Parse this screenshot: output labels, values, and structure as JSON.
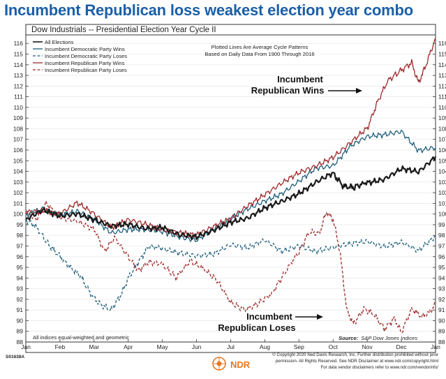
{
  "headline": "Incumbent Republican loss weakest election year combo",
  "chart_data": {
    "type": "line",
    "title": "Dow Industrials -- Presidential Election Year Cycle II",
    "note_lines": [
      "Plotted Lines Are Average Cycle Patterns",
      "Based on Daily Data From 1900 Through 2016"
    ],
    "x_ticks": [
      "Jan",
      "Feb",
      "Mar",
      "Apr",
      "May",
      "Jun",
      "Jul",
      "Aug",
      "Sep",
      "Oct",
      "Nov",
      "Dec",
      "Jan"
    ],
    "y_ticks": [
      88,
      89,
      90,
      91,
      92,
      93,
      94,
      95,
      96,
      97,
      98,
      99,
      100,
      101,
      102,
      103,
      104,
      105,
      106,
      107,
      108,
      109,
      110,
      111,
      112,
      113,
      114,
      115,
      116
    ],
    "ylim": [
      88,
      116.8
    ],
    "xlim": [
      0,
      12
    ],
    "series": [
      {
        "name": "All Elections",
        "color": "#1a1a1a",
        "dash": "",
        "width": 2.2,
        "points": [
          [
            0,
            99.5
          ],
          [
            0.5,
            100.3
          ],
          [
            1,
            99.8
          ],
          [
            1.5,
            100.1
          ],
          [
            2,
            99.5
          ],
          [
            2.5,
            98.8
          ],
          [
            3,
            99.0
          ],
          [
            3.5,
            98.7
          ],
          [
            4,
            98.8
          ],
          [
            4.5,
            98.0
          ],
          [
            5,
            97.8
          ],
          [
            5.5,
            98.5
          ],
          [
            6,
            99.3
          ],
          [
            6.5,
            99.6
          ],
          [
            7,
            100.5
          ],
          [
            7.5,
            101.2
          ],
          [
            8,
            102.0
          ],
          [
            8.5,
            103.0
          ],
          [
            9,
            103.8
          ],
          [
            9.3,
            102.6
          ],
          [
            9.6,
            102.5
          ],
          [
            10,
            103.0
          ],
          [
            10.5,
            103.3
          ],
          [
            11,
            104.2
          ],
          [
            11.5,
            103.9
          ],
          [
            12,
            105.4
          ]
        ]
      },
      {
        "name": "Incumbent Democratic Party Wins",
        "color": "#1e5f7a",
        "dash": "",
        "width": 1.3,
        "points": [
          [
            0,
            99.9
          ],
          [
            0.5,
            100.6
          ],
          [
            1,
            99.9
          ],
          [
            1.5,
            100.2
          ],
          [
            2,
            99.5
          ],
          [
            2.5,
            98.3
          ],
          [
            3,
            98.6
          ],
          [
            3.5,
            98.5
          ],
          [
            4,
            98.3
          ],
          [
            4.5,
            97.9
          ],
          [
            5,
            97.6
          ],
          [
            5.5,
            98.6
          ],
          [
            6,
            99.5
          ],
          [
            6.5,
            100.5
          ],
          [
            7,
            101.3
          ],
          [
            7.5,
            101.9
          ],
          [
            8,
            103.0
          ],
          [
            8.5,
            104.3
          ],
          [
            9,
            104.6
          ],
          [
            9.5,
            106.4
          ],
          [
            10,
            107.2
          ],
          [
            10.5,
            107.4
          ],
          [
            11,
            107.8
          ],
          [
            11.5,
            106.0
          ],
          [
            12,
            106.2
          ]
        ]
      },
      {
        "name": "Incumbent Democratic Party Loses",
        "color": "#1e5f7a",
        "dash": "4,2.5",
        "width": 1.3,
        "points": [
          [
            0,
            99.5
          ],
          [
            0.3,
            98.8
          ],
          [
            0.7,
            97.0
          ],
          [
            1,
            96.0
          ],
          [
            1.3,
            95.0
          ],
          [
            1.6,
            94.2
          ],
          [
            1.9,
            92.5
          ],
          [
            2.2,
            91.5
          ],
          [
            2.5,
            91.0
          ],
          [
            2.8,
            92.5
          ],
          [
            3,
            94.0
          ],
          [
            3.3,
            95.5
          ],
          [
            3.6,
            97.0
          ],
          [
            4,
            96.8
          ],
          [
            4.5,
            96.3
          ],
          [
            5,
            96.0
          ],
          [
            5.5,
            96.3
          ],
          [
            6,
            97.2
          ],
          [
            6.5,
            96.8
          ],
          [
            7,
            97.5
          ],
          [
            7.5,
            96.5
          ],
          [
            8,
            97.1
          ],
          [
            8.5,
            96.5
          ],
          [
            9,
            96.8
          ],
          [
            9.5,
            97.2
          ],
          [
            10,
            97.5
          ],
          [
            10.5,
            97.0
          ],
          [
            11,
            97.3
          ],
          [
            11.5,
            96.5
          ],
          [
            12,
            98.0
          ]
        ]
      },
      {
        "name": "Incumbent Republican Party Wins",
        "color": "#9e2a2b",
        "dash": "",
        "width": 1.3,
        "points": [
          [
            0,
            100.2
          ],
          [
            0.5,
            100.4
          ],
          [
            1,
            100.0
          ],
          [
            1.5,
            101.0
          ],
          [
            2,
            100.0
          ],
          [
            2.5,
            98.8
          ],
          [
            3,
            99.5
          ],
          [
            3.5,
            99.0
          ],
          [
            4,
            98.5
          ],
          [
            4.5,
            98.3
          ],
          [
            5,
            98.1
          ],
          [
            5.5,
            98.8
          ],
          [
            6,
            99.5
          ],
          [
            6.5,
            100.8
          ],
          [
            7,
            101.9
          ],
          [
            7.5,
            102.9
          ],
          [
            8,
            103.8
          ],
          [
            8.5,
            104.5
          ],
          [
            9,
            105.4
          ],
          [
            9.5,
            106.7
          ],
          [
            10,
            108.0
          ],
          [
            10.3,
            110.5
          ],
          [
            10.6,
            112.5
          ],
          [
            11,
            113.5
          ],
          [
            11.3,
            114.2
          ],
          [
            11.5,
            112.3
          ],
          [
            11.7,
            113.8
          ],
          [
            12,
            116.5
          ]
        ]
      },
      {
        "name": "Incumbent Republican Party Loses",
        "color": "#9e2a2b",
        "dash": "4,2.5",
        "width": 1.3,
        "points": [
          [
            0,
            100.3
          ],
          [
            0.3,
            99.5
          ],
          [
            0.6,
            101.0
          ],
          [
            1,
            99.7
          ],
          [
            1.5,
            99.4
          ],
          [
            2,
            98.6
          ],
          [
            2.3,
            96.5
          ],
          [
            2.6,
            97.8
          ],
          [
            3,
            96.0
          ],
          [
            3.3,
            94.7
          ],
          [
            3.6,
            95.5
          ],
          [
            4,
            95.3
          ],
          [
            4.4,
            94.0
          ],
          [
            4.8,
            95.6
          ],
          [
            5.2,
            94.9
          ],
          [
            5.6,
            93.8
          ],
          [
            6,
            91.7
          ],
          [
            6.4,
            91.0
          ],
          [
            6.8,
            91.6
          ],
          [
            7.2,
            92.5
          ],
          [
            7.6,
            94.6
          ],
          [
            8,
            96.5
          ],
          [
            8.3,
            98.3
          ],
          [
            8.6,
            98.2
          ],
          [
            8.8,
            100.2
          ],
          [
            9,
            99.5
          ],
          [
            9.2,
            96.5
          ],
          [
            9.4,
            91.0
          ],
          [
            9.6,
            89.7
          ],
          [
            9.9,
            91.1
          ],
          [
            10.2,
            90.6
          ],
          [
            10.5,
            89.2
          ],
          [
            10.8,
            90.2
          ],
          [
            11,
            88.9
          ],
          [
            11.3,
            91.1
          ],
          [
            11.6,
            90.4
          ],
          [
            11.8,
            90.7
          ],
          [
            12,
            91.5
          ]
        ]
      }
    ],
    "annotations": {
      "wins_line1": "Incumbent",
      "wins_line2": "Republican Wins",
      "loses_line1": "Incumbent",
      "loses_line2": "Republican Loses"
    },
    "footnote_left": "All indices equal-weighted and geometric",
    "source_label": "Source:",
    "source_text": "S&P Dow Jones Indices"
  },
  "footer": {
    "code": "S01638A",
    "logo": "NDR",
    "line1": "© Copyright 2020 Ned Davis Research, Inc. Further distribution prohibited without prior",
    "line2": "permission. All Rights Reserved. See NDR Disclaimer at www.ndr.com/copyright.html",
    "line3": "For data vendor disclaimers refer to www.ndr.com/vendorinfo/"
  }
}
